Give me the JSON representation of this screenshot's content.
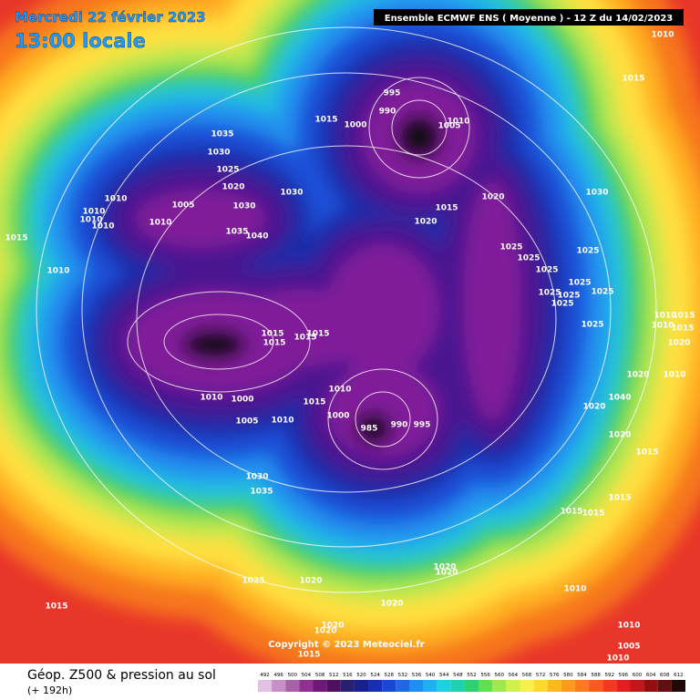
{
  "header": {
    "date": "Mercredi 22 février 2023",
    "time": "13:00 locale",
    "model": "Ensemble ECMWF ENS  ( Moyenne )  -  12 Z du 14/02/2023"
  },
  "footer": {
    "title": "Géop. Z500 & pression au sol",
    "lead": "(+ 192h)",
    "copyright": "Copyright © 2023 Meteociel.fr"
  },
  "legend": {
    "values": [
      492,
      496,
      500,
      504,
      508,
      512,
      516,
      520,
      524,
      528,
      532,
      536,
      540,
      544,
      548,
      552,
      556,
      560,
      564,
      568,
      572,
      576,
      580,
      584,
      588,
      592,
      596,
      600,
      604,
      608,
      612
    ],
    "colors": [
      "#e4c0e4",
      "#c890c8",
      "#a860a8",
      "#903090",
      "#701878",
      "#501060",
      "#282070",
      "#18208c",
      "#1830b0",
      "#1848d0",
      "#2068e0",
      "#2090f0",
      "#20b0f0",
      "#20d0e0",
      "#20d0b0",
      "#30d070",
      "#60e050",
      "#a0e850",
      "#d0f050",
      "#f8f050",
      "#ffd830",
      "#ffb820",
      "#ff9a20",
      "#ff7a20",
      "#f85a20",
      "#f03a20",
      "#e02020",
      "#c01818",
      "#901010",
      "#601010",
      "#200808"
    ]
  },
  "isobar_labels": [
    "1010",
    "1015",
    "995",
    "990",
    "1015",
    "1000",
    "1005",
    "1010",
    "1035",
    "1030",
    "1025",
    "1020",
    "1010",
    "1005",
    "1030",
    "1030",
    "1020",
    "1030",
    "1015",
    "1020",
    "1010",
    "1010",
    "1010",
    "1010",
    "1035",
    "1040",
    "1015",
    "1025",
    "1025",
    "1025",
    "1025",
    "1010",
    "1025",
    "1025",
    "1025",
    "1025",
    "1025",
    "1025",
    "1010",
    "1015",
    "1010",
    "1015",
    "1020",
    "1015",
    "1015",
    "1015",
    "1015",
    "1010",
    "1015",
    "1000",
    "1010",
    "1000",
    "1005",
    "1010",
    "985",
    "990",
    "995",
    "1020",
    "1010",
    "1020",
    "1040",
    "1020",
    "1015",
    "1030",
    "1035",
    "1015",
    "1015",
    "1015",
    "1020",
    "1020",
    "1025",
    "1020",
    "1010",
    "1015",
    "1020",
    "1010",
    "1020",
    "1020",
    "1005",
    "1015",
    "1010"
  ]
}
